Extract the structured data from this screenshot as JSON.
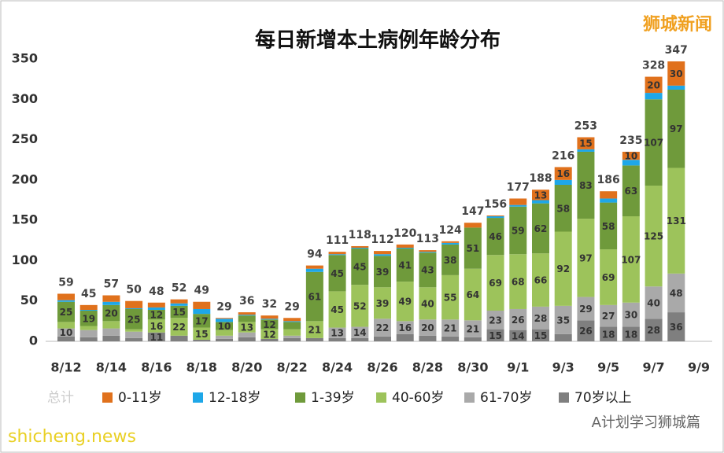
{
  "chart_data": {
    "type": "stacked-bar",
    "title": "每日新增本土病例年龄分布",
    "categories": [
      "8/12",
      null,
      "8/14",
      null,
      "8/16",
      null,
      "8/18",
      null,
      "8/20",
      null,
      "8/22",
      null,
      "8/24",
      null,
      "8/26",
      null,
      "8/28",
      null,
      "8/30",
      null,
      "9/1",
      null,
      "9/3",
      null,
      "9/5",
      null,
      "9/7",
      null,
      "9/9"
    ],
    "series": [
      {
        "name": "70岁以上",
        "color": "#7f7f7f",
        "values": [
          6,
          5,
          7,
          4,
          11,
          7,
          2,
          3,
          5,
          3,
          4,
          4,
          4,
          4,
          6,
          9,
          7,
          6,
          5,
          15,
          14,
          15,
          9,
          26,
          18,
          18,
          28,
          36,
          null
        ]
      },
      {
        "name": "61-70岁",
        "color": "#a9a9a9",
        "values": [
          10,
          9,
          9,
          8,
          0,
          0,
          0,
          4,
          6,
          0,
          3,
          0,
          13,
          14,
          22,
          16,
          20,
          21,
          21,
          23,
          26,
          28,
          35,
          29,
          27,
          30,
          40,
          48,
          null
        ]
      },
      {
        "name": "40-60岁",
        "color": "#9dc35b",
        "values": [
          8,
          5,
          9,
          3,
          16,
          22,
          15,
          7,
          13,
          12,
          8,
          21,
          45,
          52,
          39,
          49,
          40,
          55,
          64,
          69,
          68,
          66,
          92,
          97,
          69,
          107,
          125,
          131,
          null
        ]
      },
      {
        "name": "1-39岁",
        "color": "#6f9a3b",
        "values": [
          25,
          19,
          20,
          25,
          12,
          15,
          17,
          10,
          8,
          12,
          9,
          61,
          45,
          45,
          39,
          41,
          43,
          38,
          51,
          46,
          59,
          62,
          58,
          83,
          58,
          63,
          107,
          97,
          null
        ]
      },
      {
        "name": "12-18岁",
        "color": "#1ea7e8",
        "values": [
          2,
          1,
          4,
          1,
          3,
          3,
          6,
          4,
          1,
          1,
          1,
          4,
          1,
          1,
          2,
          1,
          1,
          2,
          0,
          2,
          2,
          4,
          6,
          3,
          5,
          7,
          8,
          5,
          null
        ]
      },
      {
        "name": "0-11岁",
        "color": "#e0711c",
        "values": [
          8,
          6,
          8,
          9,
          6,
          5,
          9,
          1,
          3,
          4,
          4,
          4,
          3,
          2,
          4,
          4,
          2,
          2,
          6,
          1,
          8,
          13,
          16,
          15,
          9,
          10,
          20,
          30,
          null
        ]
      }
    ],
    "totals": [
      59,
      45,
      57,
      50,
      48,
      52,
      49,
      29,
      36,
      32,
      29,
      94,
      111,
      118,
      112,
      120,
      113,
      124,
      147,
      156,
      177,
      188,
      216,
      253,
      186,
      235,
      328,
      347,
      null
    ],
    "total_label": "总计",
    "ylim": [
      0,
      350
    ],
    "yticks": [
      0,
      50,
      100,
      150,
      200,
      250,
      300,
      350
    ],
    "watermarks": {
      "top_right": "狮城新闻",
      "bottom_left": "shicheng.news",
      "bottom_right": "A计划学习狮城篇"
    }
  }
}
